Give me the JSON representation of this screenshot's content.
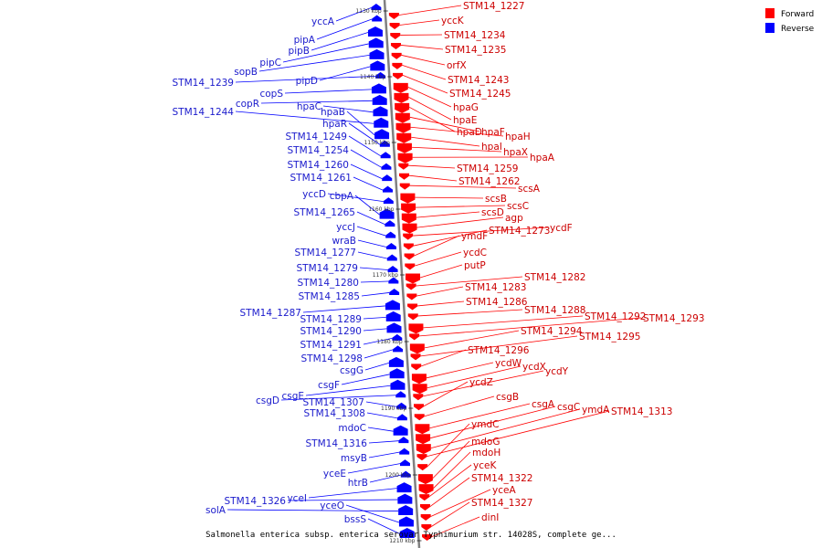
{
  "colors": {
    "forward": "#ff0000",
    "reverse": "#0000ff",
    "axis": "#808080",
    "text_forward": "#cc0000",
    "text_reverse": "#1a1acc"
  },
  "legend": [
    {
      "label": "Forward",
      "strand": "forward"
    },
    {
      "label": "Reverse",
      "strand": "reverse"
    }
  ],
  "caption": "Salmonella enterica subsp. enterica serovar Typhimurium str. 14028S, complete ge...",
  "ticks": [
    "1130 kbp",
    "1140 kbp",
    "1150 kbp",
    "1160 kbp",
    "1170 kbp",
    "1180 kbp",
    "1190 kbp",
    "1200 kbp",
    "1210 kbp"
  ],
  "genes_forward": [
    "STM14_1227",
    "yccK",
    "STM14_1234",
    "STM14_1235",
    "orfX",
    "STM14_1243",
    "STM14_1245",
    "hpaG",
    "hpaE",
    "hpaD",
    "hpaF",
    "hpaH",
    "hpaI",
    "hpaX",
    "hpaA",
    "STM14_1259",
    "STM14_1262",
    "scsA",
    "scsB",
    "scsC",
    "scsD",
    "agp",
    "ycdF",
    "STM14_1273",
    "ymdF",
    "ycdC",
    "putP",
    "STM14_1282",
    "STM14_1283",
    "STM14_1286",
    "STM14_1288",
    "STM14_1292",
    "STM14_1293",
    "STM14_1294",
    "STM14_1295",
    "STM14_1296",
    "ycdW",
    "ycdX",
    "ycdY",
    "ycdZ",
    "csgB",
    "csgA",
    "csgC",
    "ymdA",
    "STM14_1313",
    "ymdC",
    "mdoG",
    "mdoH",
    "yceK",
    "STM14_1322",
    "yceA",
    "STM14_1327",
    "dinI"
  ],
  "genes_reverse": [
    "yccA",
    "pipA",
    "pipB",
    "pipC",
    "sopB",
    "pipD",
    "STM14_1239",
    "copS",
    "copR",
    "hpaC",
    "STM14_1244",
    "hpaB",
    "hpaR",
    "STM14_1249",
    "STM14_1254",
    "STM14_1260",
    "STM14_1261",
    "yccD",
    "cbpA",
    "STM14_1265",
    "yccJ",
    "wraB",
    "STM14_1277",
    "STM14_1279",
    "STM14_1280",
    "STM14_1285",
    "STM14_1287",
    "STM14_1289",
    "STM14_1290",
    "STM14_1291",
    "STM14_1298",
    "csgG",
    "csgF",
    "csgE",
    "csgD",
    "STM14_1307",
    "STM14_1308",
    "mdoC",
    "STM14_1316",
    "msyB",
    "yceE",
    "htrB",
    "yceI",
    "STM14_1326",
    "solA",
    "yceO",
    "bssS"
  ]
}
